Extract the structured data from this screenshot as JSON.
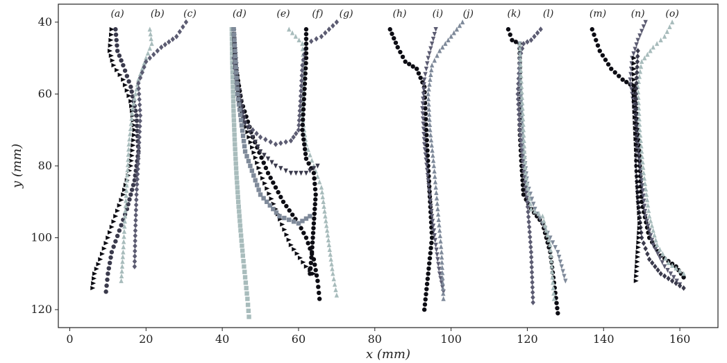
{
  "chart_data": {
    "type": "scatter",
    "title": "",
    "xlabel": "x (mm)",
    "ylabel": "y (mm)",
    "xlim": [
      -3,
      170
    ],
    "ylim": [
      125,
      35
    ],
    "x_ticks": [
      0,
      20,
      40,
      60,
      80,
      100,
      120,
      140,
      160
    ],
    "y_ticks": [
      40,
      60,
      80,
      100,
      120
    ],
    "grid": false,
    "panel_labels": [
      {
        "text": "(a)",
        "x": 12.5
      },
      {
        "text": "(b)",
        "x": 23
      },
      {
        "text": "(c)",
        "x": 31.5
      },
      {
        "text": "(d)",
        "x": 44.5
      },
      {
        "text": "(e)",
        "x": 56
      },
      {
        "text": "(f)",
        "x": 65
      },
      {
        "text": "(g)",
        "x": 72.5
      },
      {
        "text": "(h)",
        "x": 86.5
      },
      {
        "text": "(i)",
        "x": 96.5
      },
      {
        "text": "(j)",
        "x": 104.5
      },
      {
        "text": "(k)",
        "x": 116.5
      },
      {
        "text": "(l)",
        "x": 125.5
      },
      {
        "text": "(m)",
        "x": 138.5
      },
      {
        "text": "(n)",
        "x": 149
      },
      {
        "text": "(o)",
        "x": 158
      }
    ],
    "marker_colors": [
      "#0d0d14",
      "#3a3a4c",
      "#5c5c72",
      "#7f8a9a",
      "#a8bcbc"
    ],
    "series": [
      {
        "marker": "square",
        "color": "#a8bcbc",
        "x": [
          42.5,
          42.6,
          42.8,
          43.0,
          43.3,
          43.7,
          44.2,
          44.8,
          45.4,
          46.0,
          46.6,
          47.0
        ],
        "y": [
          42,
          50,
          58,
          66,
          74,
          82,
          90,
          98,
          105,
          111,
          117,
          122
        ]
      },
      {
        "marker": "triangle-right",
        "color": "#0d0d14",
        "x": [
          11,
          10.5,
          11.5,
          14,
          16,
          17,
          16,
          14,
          12,
          10,
          8,
          6.5,
          6
        ],
        "y": [
          42,
          48,
          52,
          56,
          62,
          70,
          80,
          88,
          94,
          100,
          106,
          110,
          114
        ]
      },
      {
        "marker": "circle",
        "color": "#3a3a4c",
        "x": [
          12,
          12.5,
          14,
          16,
          17.5,
          18,
          17,
          15,
          13,
          11,
          10,
          9.5
        ],
        "y": [
          42,
          48,
          52,
          58,
          66,
          76,
          84,
          92,
          98,
          104,
          110,
          115
        ]
      },
      {
        "marker": "triangle-up",
        "color": "#a8bcbc",
        "x": [
          21,
          21.5,
          20,
          18,
          16.5,
          15.5,
          15,
          14.5,
          14,
          13.5
        ],
        "y": [
          42,
          46,
          50,
          56,
          64,
          74,
          84,
          94,
          104,
          112
        ]
      },
      {
        "marker": "diamond",
        "color": "#5c5c72",
        "x": [
          30.5,
          28,
          24,
          20,
          18,
          18.5,
          18,
          17.5,
          17.2,
          17
        ],
        "y": [
          40,
          44,
          47,
          51,
          57,
          66,
          78,
          88,
          98,
          108
        ]
      },
      {
        "marker": "circle",
        "color": "#0d0d14",
        "x": [
          43,
          43.5,
          45,
          48,
          52,
          56,
          60,
          62,
          64,
          65,
          65.5
        ],
        "y": [
          42,
          52,
          62,
          72,
          82,
          90,
          96,
          100,
          106,
          112,
          117
        ]
      },
      {
        "marker": "triangle-right",
        "color": "#0d0d14",
        "x": [
          43,
          43.5,
          44.5,
          47,
          50,
          54,
          58,
          62,
          64
        ],
        "y": [
          42,
          52,
          62,
          72,
          82,
          92,
          102,
          108,
          110
        ]
      },
      {
        "marker": "triangle-up",
        "color": "#a8bcbc",
        "x": [
          57.5,
          61,
          61.5,
          61,
          62,
          64,
          66,
          67,
          68,
          69,
          70
        ],
        "y": [
          42,
          46,
          55,
          66,
          74,
          80,
          86,
          94,
          102,
          110,
          116
        ]
      },
      {
        "marker": "diamond",
        "color": "#5c5c72",
        "x": [
          70,
          66,
          62,
          61,
          60.5,
          60,
          58,
          54,
          50,
          46,
          44,
          43
        ],
        "y": [
          40,
          44,
          46,
          52,
          62,
          70,
          73,
          74,
          72,
          68,
          60,
          50
        ]
      },
      {
        "marker": "circle",
        "color": "#0d0d14",
        "x": [
          62,
          62,
          61.5,
          61,
          62,
          64,
          64.5,
          64,
          63.5,
          63
        ],
        "y": [
          42,
          50,
          60,
          70,
          78,
          82,
          88,
          96,
          104,
          110
        ]
      },
      {
        "marker": "triangle-down",
        "color": "#3a3a4c",
        "x": [
          43,
          44,
          46,
          50,
          54,
          58,
          62,
          65
        ],
        "y": [
          42,
          56,
          68,
          76,
          80,
          82,
          82,
          80
        ]
      },
      {
        "marker": "square",
        "color": "#7f8a9a",
        "x": [
          43,
          44,
          46,
          50,
          55,
          60,
          63
        ],
        "y": [
          42,
          60,
          76,
          88,
          94,
          96,
          94
        ]
      },
      {
        "marker": "circle",
        "color": "#0d0d14",
        "x": [
          84,
          86,
          88,
          91,
          93,
          93.5,
          94,
          94.5,
          95,
          94,
          93
        ],
        "y": [
          42,
          47,
          51,
          53,
          58,
          70,
          80,
          90,
          100,
          110,
          120
        ]
      },
      {
        "marker": "triangle-down",
        "color": "#5c5c72",
        "x": [
          96,
          95,
          94,
          93,
          92.5,
          93,
          94,
          95,
          96,
          97,
          98
        ],
        "y": [
          42,
          46,
          50,
          56,
          64,
          74,
          84,
          94,
          102,
          110,
          115
        ]
      },
      {
        "marker": "triangle-up",
        "color": "#7f8a9a",
        "x": [
          103,
          100,
          97,
          95,
          94,
          94.5,
          95.5,
          96.5,
          97.5,
          98
        ],
        "y": [
          40,
          44,
          48,
          52,
          60,
          70,
          80,
          92,
          104,
          117
        ]
      },
      {
        "marker": "circle",
        "color": "#0d0d14",
        "x": [
          115,
          116,
          118,
          118,
          118,
          118,
          118.5,
          119,
          121,
          124,
          126,
          128
        ],
        "y": [
          42,
          45,
          46,
          50,
          60,
          70,
          80,
          88,
          92,
          96,
          104,
          121
        ]
      },
      {
        "marker": "diamond",
        "color": "#5c5c72",
        "x": [
          123.5,
          121,
          119,
          118,
          117.5,
          118,
          119,
          120,
          121,
          121.5
        ],
        "y": [
          42,
          45,
          46,
          50,
          60,
          70,
          80,
          90,
          104,
          118
        ]
      },
      {
        "marker": "triangle-down",
        "color": "#7f8a9a",
        "x": [
          118,
          118,
          118.5,
          119,
          120,
          122,
          124,
          126,
          128,
          130
        ],
        "y": [
          46,
          55,
          65,
          75,
          85,
          92,
          96,
          100,
          104,
          112
        ]
      },
      {
        "marker": "triangle-up",
        "color": "#a8bcbc",
        "x": [
          118,
          118.5,
          119,
          119.5,
          121,
          124,
          126,
          127
        ],
        "y": [
          46,
          58,
          70,
          82,
          92,
          94,
          102,
          117
        ]
      },
      {
        "marker": "circle",
        "color": "#0d0d14",
        "x": [
          137,
          139,
          142,
          145,
          148,
          149,
          149.5,
          150,
          152,
          155,
          159,
          161
        ],
        "y": [
          42,
          48,
          53,
          56,
          58,
          70,
          80,
          90,
          100,
          105,
          108,
          111
        ]
      },
      {
        "marker": "triangle-down",
        "color": "#5c5c72",
        "x": [
          151,
          149,
          147.5,
          147,
          148,
          149,
          150,
          151,
          153,
          156,
          160
        ],
        "y": [
          40,
          45,
          50,
          56,
          64,
          74,
          84,
          94,
          102,
          108,
          113
        ]
      },
      {
        "marker": "triangle-up",
        "color": "#a8bcbc",
        "x": [
          158,
          156,
          153,
          150,
          149,
          149.5,
          150.5,
          152,
          154,
          157,
          161
        ],
        "y": [
          40,
          44,
          47,
          51,
          58,
          70,
          82,
          94,
          102,
          107,
          110
        ]
      },
      {
        "marker": "diamond",
        "color": "#3a3a4c",
        "x": [
          149,
          148.5,
          148.5,
          148.5,
          149,
          150,
          152,
          155,
          158,
          161
        ],
        "y": [
          48,
          60,
          70,
          80,
          90,
          100,
          106,
          110,
          112,
          114
        ]
      },
      {
        "marker": "triangle-right",
        "color": "#0d0d14",
        "x": [
          148,
          148,
          148.5,
          149,
          149.5,
          149,
          148.5
        ],
        "y": [
          50,
          62,
          74,
          86,
          96,
          104,
          112
        ]
      }
    ]
  }
}
